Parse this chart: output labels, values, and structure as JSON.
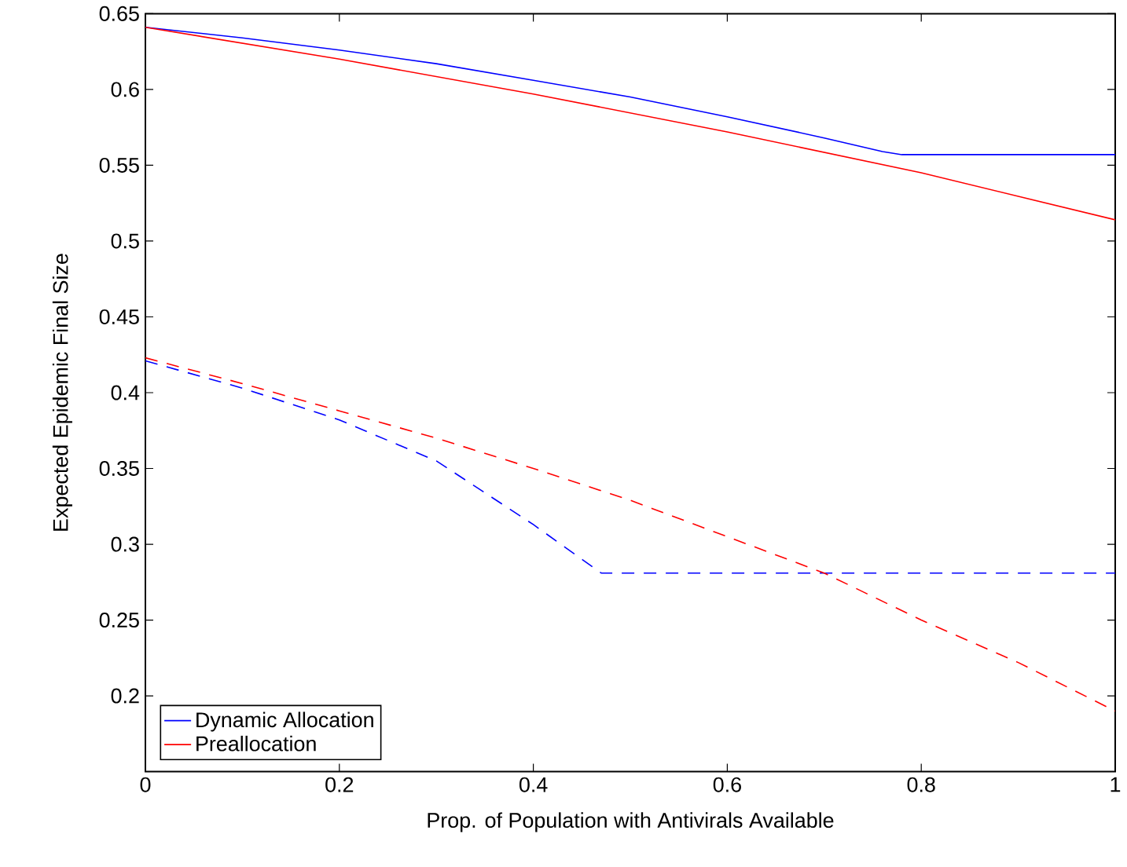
{
  "chart_data": {
    "type": "line",
    "xlabel": "Prop. of Population with Antivirals Available",
    "ylabel": "Expected Epidemic Final Size",
    "xlim": [
      0,
      1
    ],
    "ylim": [
      0.15,
      0.65
    ],
    "xticks": [
      0,
      0.2,
      0.4,
      0.6,
      0.8,
      1
    ],
    "yticks": [
      0.2,
      0.25,
      0.3,
      0.35,
      0.4,
      0.45,
      0.5,
      0.55,
      0.6,
      0.65
    ],
    "legend": "bottom left",
    "grid": false,
    "series": [
      {
        "name": "Dynamic Allocation",
        "color": "#0000ff",
        "line_style": "solid",
        "x": [
          0,
          0.1,
          0.2,
          0.3,
          0.4,
          0.5,
          0.6,
          0.7,
          0.76,
          0.78,
          1
        ],
        "values": [
          0.641,
          0.634,
          0.626,
          0.617,
          0.606,
          0.595,
          0.582,
          0.568,
          0.559,
          0.557,
          0.557
        ]
      },
      {
        "name": "Preallocation",
        "color": "#ff0000",
        "line_style": "solid",
        "x": [
          0,
          0.2,
          0.4,
          0.6,
          0.8,
          1
        ],
        "values": [
          0.641,
          0.62,
          0.597,
          0.572,
          0.545,
          0.514
        ]
      },
      {
        "color": "#0000ff",
        "line_style": "dashed",
        "x": [
          0,
          0.1,
          0.2,
          0.3,
          0.35,
          0.4,
          0.47,
          1
        ],
        "values": [
          0.421,
          0.403,
          0.382,
          0.355,
          0.334,
          0.313,
          0.281,
          0.281
        ]
      },
      {
        "color": "#ff0000",
        "line_style": "dashed",
        "x": [
          0,
          0.1,
          0.2,
          0.3,
          0.4,
          0.5,
          0.6,
          0.7,
          0.8,
          0.9,
          1
        ],
        "values": [
          0.423,
          0.406,
          0.388,
          0.37,
          0.35,
          0.329,
          0.305,
          0.281,
          0.25,
          0.222,
          0.19
        ]
      }
    ]
  }
}
